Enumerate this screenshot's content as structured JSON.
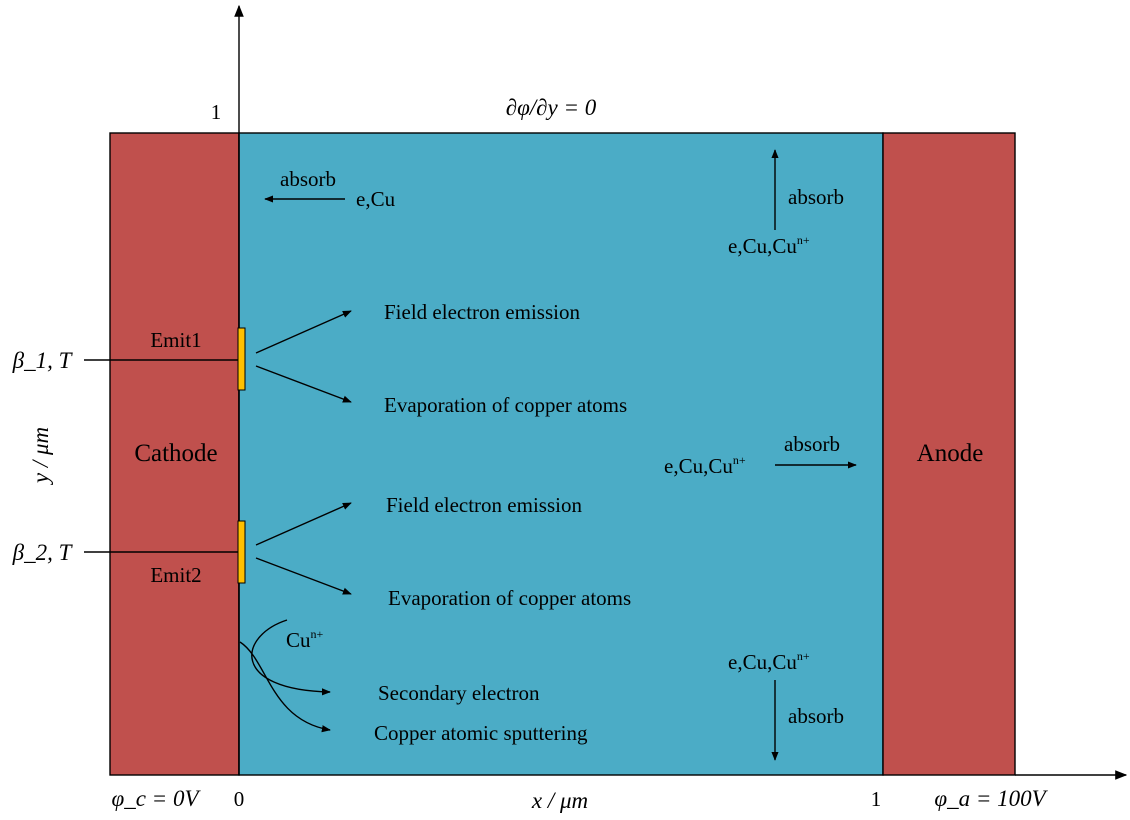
{
  "colors": {
    "electrode": "#c0504d",
    "gap": "#4bacc6",
    "emitter": "#ffc000",
    "line": "#000000"
  },
  "axes": {
    "y_label": "y / μm",
    "y_tick_top": "1",
    "x_label": "x / μm",
    "x_tick_origin": "0",
    "x_tick_end": "1"
  },
  "boundary": {
    "top": "∂φ/∂y = 0",
    "cathode_potential": "φ_c = 0V",
    "anode_potential": "φ_a = 100V"
  },
  "electrodes": {
    "cathode": "Cathode",
    "anode": "Anode"
  },
  "emitters": [
    {
      "name": "Emit1",
      "parameter": "β_1, T"
    },
    {
      "name": "Emit2",
      "parameter": "β_2, T"
    }
  ],
  "processes": {
    "field_emission": "Field electron emission",
    "evaporation": "Evaporation of copper atoms",
    "secondary_electron": "Secondary electron",
    "sputtering": "Copper atomic sputtering"
  },
  "particles": {
    "cathode_absorbed": "e,Cu",
    "anode_absorbed": "e,Cu,Cu",
    "ion": "Cu",
    "ion_charge": "n+"
  },
  "absorb_label": "absorb"
}
